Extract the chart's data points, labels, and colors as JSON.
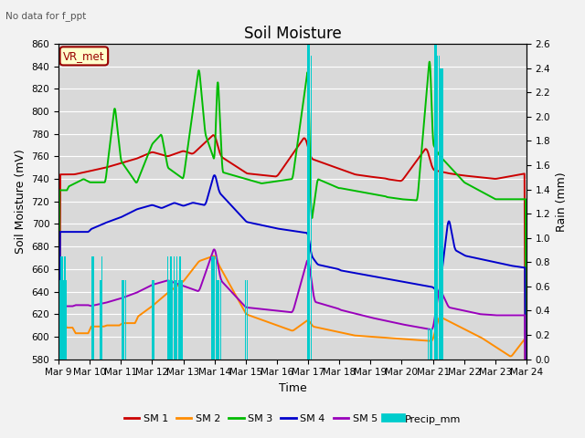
{
  "title": "Soil Moisture",
  "xlabel": "Time",
  "ylabel_left": "Soil Moisture (mV)",
  "ylabel_right": "Rain (mm)",
  "ylim_left": [
    580,
    860
  ],
  "ylim_right": [
    0.0,
    2.6
  ],
  "yticks_left": [
    580,
    600,
    620,
    640,
    660,
    680,
    700,
    720,
    740,
    760,
    780,
    800,
    820,
    840,
    860
  ],
  "yticks_right": [
    0.0,
    0.2,
    0.4,
    0.6,
    0.8,
    1.0,
    1.2,
    1.4,
    1.6,
    1.8,
    2.0,
    2.2,
    2.4,
    2.6
  ],
  "colors": {
    "SM1": "#cc0000",
    "SM2": "#ff8c00",
    "SM3": "#00bb00",
    "SM4": "#0000cc",
    "SM5": "#9900bb",
    "Precip": "#00cccc"
  },
  "bg_color": "#d9d9d9",
  "grid_color": "#ffffff",
  "annotation_text": "No data for f_ppt",
  "annotation_box": "VR_met",
  "legend_labels": [
    "SM 1",
    "SM 2",
    "SM 3",
    "SM 4",
    "SM 5",
    "Precip_mm"
  ],
  "xtick_labels": [
    "Mar 9",
    "Mar 10",
    "Mar 11",
    "Mar 12",
    "Mar 13",
    "Mar 14",
    "Mar 15",
    "Mar 16",
    "Mar 17",
    "Mar 18",
    "Mar 19",
    "Mar 20",
    "Mar 21",
    "Mar 22",
    "Mar 23",
    "Mar 24"
  ],
  "title_fontsize": 12,
  "label_fontsize": 9,
  "tick_fontsize": 7.5
}
